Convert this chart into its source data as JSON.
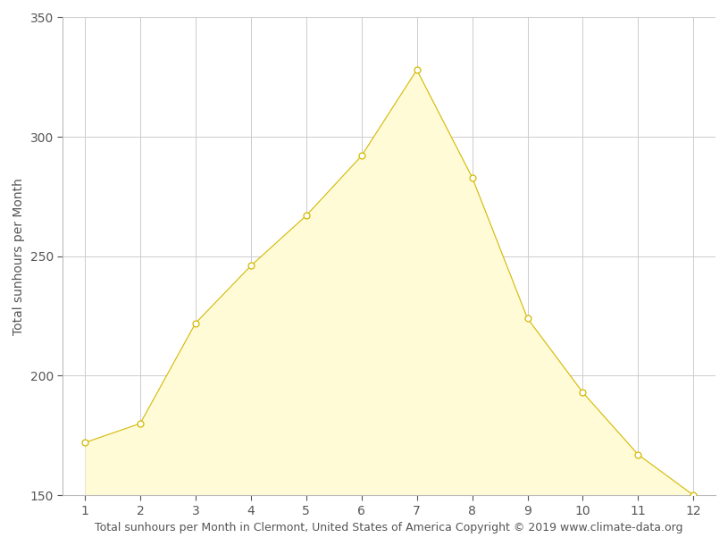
{
  "months": [
    1,
    2,
    3,
    4,
    5,
    6,
    7,
    8,
    9,
    10,
    11,
    12
  ],
  "sunhours": [
    172,
    180,
    222,
    246,
    267,
    292,
    328,
    283,
    224,
    193,
    167,
    150
  ],
  "fill_color": "#FFFBD6",
  "line_color": "#D4B800",
  "marker_facecolor": "#FFFFFF",
  "marker_edgecolor": "#D4B800",
  "xlabel": "Total sunhours per Month in Clermont, United States of America Copyright © 2019 www.climate-data.org",
  "ylabel": "Total sunhours per Month",
  "xlim_left": 0.6,
  "xlim_right": 12.4,
  "ylim": [
    150,
    350
  ],
  "yticks": [
    150,
    200,
    250,
    300,
    350
  ],
  "xticks": [
    1,
    2,
    3,
    4,
    5,
    6,
    7,
    8,
    9,
    10,
    11,
    12
  ],
  "grid_color": "#cccccc",
  "background_color": "#ffffff",
  "xlabel_fontsize": 9,
  "ylabel_fontsize": 10,
  "tick_fontsize": 10,
  "line_width": 0.8,
  "marker_size": 5,
  "marker_linewidth": 0.9
}
